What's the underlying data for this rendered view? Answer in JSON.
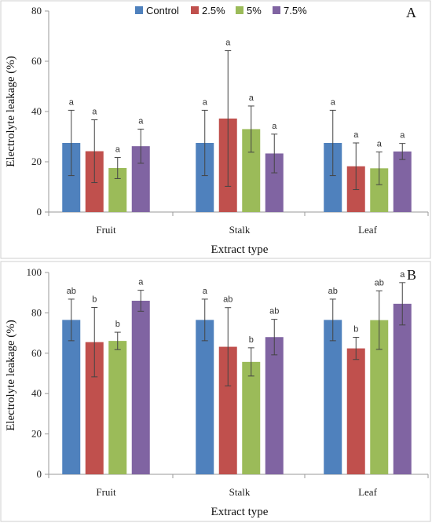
{
  "chart_data": [
    {
      "type": "bar",
      "panel": "A",
      "categories": [
        "Fruit",
        "Stalk",
        "Leaf"
      ],
      "series": [
        {
          "name": "Control",
          "color": "#4F81BD",
          "values": [
            27.5,
            27.5,
            27.5
          ],
          "errors": [
            13,
            13,
            13
          ],
          "labels": [
            "a",
            "a",
            "a"
          ]
        },
        {
          "name": "2.5%",
          "color": "#C0504D",
          "values": [
            24.2,
            37.2,
            18.2
          ],
          "errors": [
            12.5,
            27,
            9.3
          ],
          "labels": [
            "a",
            "a",
            "a"
          ]
        },
        {
          "name": "5%",
          "color": "#9BBB59",
          "values": [
            17.5,
            33.0,
            17.4
          ],
          "errors": [
            4.2,
            9.2,
            6.5
          ],
          "labels": [
            "a",
            "a",
            "a"
          ]
        },
        {
          "name": "7.5%",
          "color": "#8064A2",
          "values": [
            26.2,
            23.3,
            24.1
          ],
          "errors": [
            6.8,
            7.7,
            3.2
          ],
          "labels": [
            "a",
            "a",
            "a"
          ]
        }
      ],
      "xlabel": "Extract type",
      "ylabel": "Electrolyte leakage (%)",
      "yticks": [
        "0",
        "20",
        "40",
        "60",
        "80"
      ],
      "ylim": [
        0,
        80
      ],
      "grid": false,
      "legend": "top-center"
    },
    {
      "type": "bar",
      "panel": "B",
      "categories": [
        "Fruit",
        "Stalk",
        "Leaf"
      ],
      "series": [
        {
          "name": "Control",
          "color": "#4F81BD",
          "values": [
            76.5,
            76.5,
            76.5
          ],
          "errors": [
            10.3,
            10.3,
            10.3
          ],
          "labels": [
            "ab",
            "a",
            "ab"
          ]
        },
        {
          "name": "2.5%",
          "color": "#C0504D",
          "values": [
            65.5,
            63.2,
            62.4
          ],
          "errors": [
            17.2,
            19.4,
            5.5
          ],
          "labels": [
            "b",
            "ab",
            "b"
          ]
        },
        {
          "name": "5%",
          "color": "#9BBB59",
          "values": [
            66.1,
            55.7,
            76.4
          ],
          "errors": [
            4.3,
            7.0,
            14.5
          ],
          "labels": [
            "b",
            "b",
            "ab"
          ]
        },
        {
          "name": "7.5%",
          "color": "#8064A2",
          "values": [
            86.0,
            68.0,
            84.5
          ],
          "errors": [
            5.2,
            8.8,
            10.5
          ],
          "labels": [
            "a",
            "ab",
            "a"
          ]
        }
      ],
      "xlabel": "Extract type",
      "ylabel": "Electrolyte leakage (%)",
      "yticks": [
        "0",
        "20",
        "40",
        "60",
        "80",
        "100"
      ],
      "ylim": [
        0,
        100
      ],
      "grid": false,
      "legend": "none"
    }
  ]
}
